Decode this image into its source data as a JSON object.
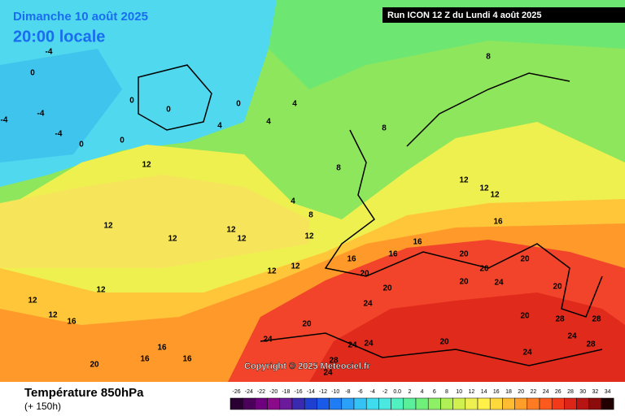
{
  "header": {
    "valid_line1": "Dimanche 10 août 2025",
    "valid_line2": "20:00 locale",
    "run": "Run ICON 12 Z du Lundi 4 août 2025"
  },
  "copyright": "Copyright © 2025 Meteociel.fr",
  "footer": {
    "title": "Température 850hPa",
    "lead": "(+ 150h)"
  },
  "colorbar": {
    "ticks": [
      -26,
      -24,
      -22,
      -20,
      -18,
      -16,
      -14,
      -12,
      -10,
      -8,
      -6,
      -4,
      -2,
      {
        "value": 0,
        "label": "0.0"
      },
      2,
      4,
      6,
      8,
      10,
      12,
      14,
      16,
      18,
      20,
      22,
      24,
      26,
      28,
      30,
      32,
      34
    ],
    "colors": [
      "#2a0033",
      "#4b0059",
      "#6e007f",
      "#8a0a8a",
      "#6a1a9a",
      "#3a2ab0",
      "#1f3fd0",
      "#1a5ae8",
      "#1e7cf5",
      "#2aa0f8",
      "#35c2f5",
      "#3fdcef",
      "#4ae8e0",
      "#50f0c0",
      "#5af09a",
      "#6ff07a",
      "#8ef065",
      "#b0f055",
      "#d0f050",
      "#eef050",
      "#fff04a",
      "#ffd83c",
      "#ffbc30",
      "#ff9e28",
      "#ff7c22",
      "#ff5a1e",
      "#f23a1a",
      "#dc2418",
      "#b81414",
      "#8c0c0c",
      "#200000"
    ]
  },
  "contour_labels": [
    0,
    0,
    0,
    0,
    0,
    0,
    -4,
    -4,
    -4,
    -4,
    4,
    4,
    4,
    4,
    8,
    8,
    8,
    8,
    12,
    12,
    12,
    12,
    12,
    12,
    12,
    12,
    12,
    12,
    12,
    12,
    12,
    12,
    16,
    16,
    16,
    16,
    16,
    16,
    16,
    16,
    20,
    20,
    20,
    20,
    20,
    20,
    20,
    20,
    20,
    20,
    20,
    24,
    24,
    24,
    24,
    24,
    24,
    24,
    24,
    28,
    28,
    28,
    28
  ]
}
